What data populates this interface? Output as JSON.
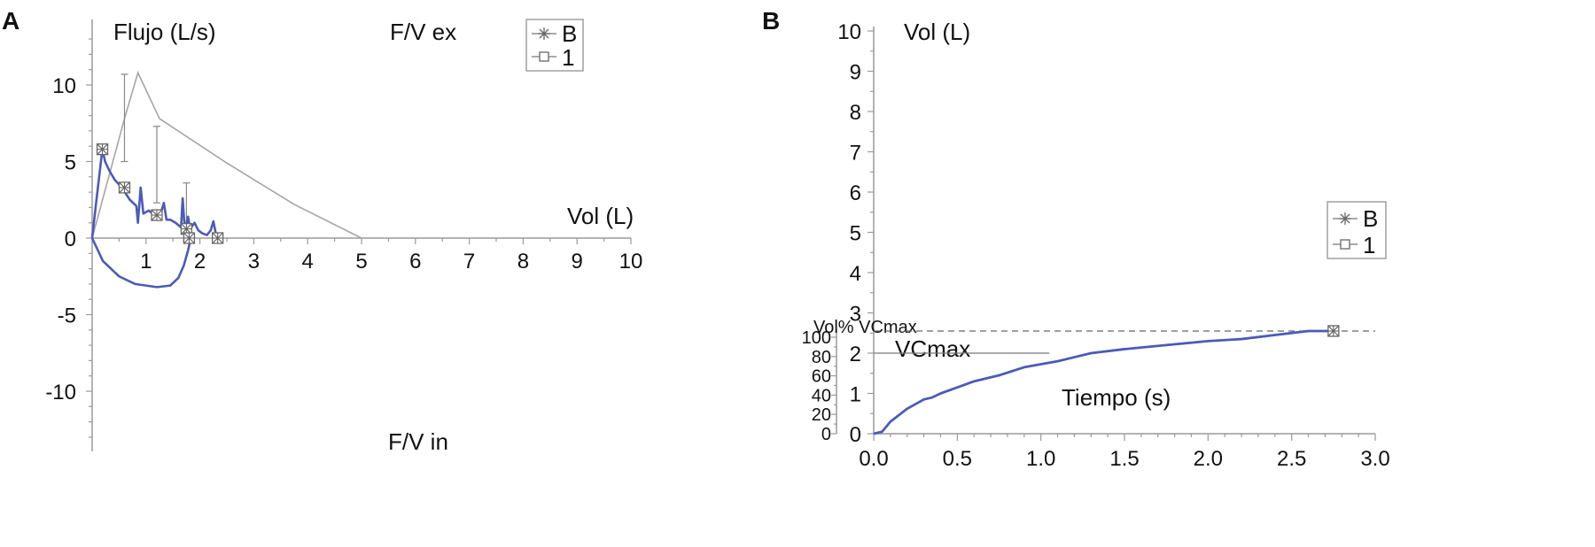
{
  "chart_data": [
    {
      "panel_label": "A",
      "type": "line",
      "title_top": "F/V ex",
      "title_bottom": "F/V in",
      "xlabel": "Vol (L)",
      "ylabel": "Flujo (L/s)",
      "xlim": [
        0,
        10
      ],
      "ylim": [
        -13,
        13
      ],
      "x_ticks": [
        "1",
        "2",
        "3",
        "4",
        "5",
        "6",
        "7",
        "8",
        "9",
        "10"
      ],
      "y_ticks": [
        {
          "value": 10,
          "label": "10"
        },
        {
          "value": 5,
          "label": "5"
        },
        {
          "value": 0,
          "label": "0"
        },
        {
          "value": -5,
          "label": "-5"
        },
        {
          "value": -10,
          "label": "-10"
        }
      ],
      "legend": [
        {
          "name": "B",
          "marker": "asterisk"
        },
        {
          "name": "1",
          "marker": "square"
        }
      ],
      "legend_position": "top-right",
      "predicted_curve": [
        [
          0,
          0
        ],
        [
          0.6,
          7.8
        ],
        [
          0.85,
          10.8
        ],
        [
          1.25,
          7.8
        ],
        [
          2.5,
          4.9
        ],
        [
          3.75,
          2.2
        ],
        [
          5,
          0
        ]
      ],
      "error_bars": [
        {
          "x": 0.6,
          "low": 5.0,
          "high": 10.7
        },
        {
          "x": 1.2,
          "low": 2.3,
          "high": 7.3
        },
        {
          "x": 1.75,
          "low": -0.2,
          "high": 3.6
        }
      ],
      "expiratory_curve": [
        [
          0,
          0
        ],
        [
          0.07,
          2.2
        ],
        [
          0.14,
          4.3
        ],
        [
          0.19,
          5.8
        ],
        [
          0.24,
          5.0
        ],
        [
          0.32,
          4.4
        ],
        [
          0.42,
          3.8
        ],
        [
          0.55,
          3.3
        ],
        [
          0.7,
          2.5
        ],
        [
          0.82,
          2.1
        ],
        [
          0.85,
          1.0
        ],
        [
          0.9,
          3.3
        ],
        [
          0.95,
          1.6
        ],
        [
          1.05,
          1.8
        ],
        [
          1.12,
          1.6
        ],
        [
          1.2,
          1.4
        ],
        [
          1.28,
          1.7
        ],
        [
          1.33,
          2.3
        ],
        [
          1.38,
          1.2
        ],
        [
          1.45,
          1.2
        ],
        [
          1.55,
          1.0
        ],
        [
          1.65,
          0.7
        ],
        [
          1.68,
          2.6
        ],
        [
          1.72,
          0.5
        ],
        [
          1.78,
          1.4
        ],
        [
          1.82,
          0.6
        ],
        [
          1.9,
          1.0
        ],
        [
          1.97,
          0.5
        ],
        [
          2.05,
          0.3
        ],
        [
          2.13,
          0.2
        ],
        [
          2.2,
          0.5
        ],
        [
          2.25,
          1.1
        ],
        [
          2.3,
          0.2
        ],
        [
          2.35,
          0.0
        ]
      ],
      "inspiratory_curve": [
        [
          0,
          0
        ],
        [
          0.2,
          -1.5
        ],
        [
          0.5,
          -2.5
        ],
        [
          0.8,
          -3.0
        ],
        [
          1.2,
          -3.2
        ],
        [
          1.45,
          -3.1
        ],
        [
          1.6,
          -2.6
        ],
        [
          1.7,
          -1.8
        ],
        [
          1.78,
          -0.8
        ],
        [
          1.82,
          -0.2
        ]
      ],
      "markers": [
        [
          0.19,
          5.8
        ],
        [
          0.6,
          3.3
        ],
        [
          1.2,
          1.5
        ],
        [
          1.75,
          0.6
        ],
        [
          1.8,
          0.0
        ],
        [
          2.33,
          0.0
        ]
      ]
    },
    {
      "panel_label": "B",
      "type": "line",
      "ylabel": "Vol (L)",
      "ylabel_secondary": "Vol% VCmax",
      "xlabel": "Tiempo (s)",
      "reference_label": "VCmax",
      "xlim": [
        0,
        3.0
      ],
      "ylim": [
        0,
        10
      ],
      "ylim_secondary": [
        0,
        100
      ],
      "x_ticks": [
        "0.0",
        "0.5",
        "1.0",
        "1.5",
        "2.0",
        "2.5",
        "3.0"
      ],
      "y_ticks": [
        "0",
        "1",
        "2",
        "3",
        "4",
        "5",
        "6",
        "7",
        "8",
        "9",
        "10"
      ],
      "y_ticks_secondary": [
        "0",
        "20",
        "40",
        "60",
        "80",
        "100"
      ],
      "legend": [
        {
          "name": "B",
          "marker": "asterisk"
        },
        {
          "name": "1",
          "marker": "square"
        }
      ],
      "legend_position": "right",
      "reference_lines": {
        "vcmax_line_y": 2.0,
        "vcmax_line_x_end": 1.05,
        "dashed_100_y": 2.55
      },
      "volume_curve": [
        [
          0,
          0
        ],
        [
          0.05,
          0.05
        ],
        [
          0.1,
          0.3
        ],
        [
          0.2,
          0.62
        ],
        [
          0.3,
          0.85
        ],
        [
          0.35,
          0.9
        ],
        [
          0.4,
          1.0
        ],
        [
          0.5,
          1.15
        ],
        [
          0.6,
          1.3
        ],
        [
          0.75,
          1.45
        ],
        [
          0.9,
          1.65
        ],
        [
          1.1,
          1.8
        ],
        [
          1.2,
          1.9
        ],
        [
          1.3,
          2.0
        ],
        [
          1.5,
          2.1
        ],
        [
          1.75,
          2.2
        ],
        [
          2.0,
          2.3
        ],
        [
          2.2,
          2.35
        ],
        [
          2.4,
          2.45
        ],
        [
          2.6,
          2.55
        ],
        [
          2.75,
          2.55
        ]
      ],
      "marker": [
        2.75,
        2.55
      ]
    }
  ]
}
